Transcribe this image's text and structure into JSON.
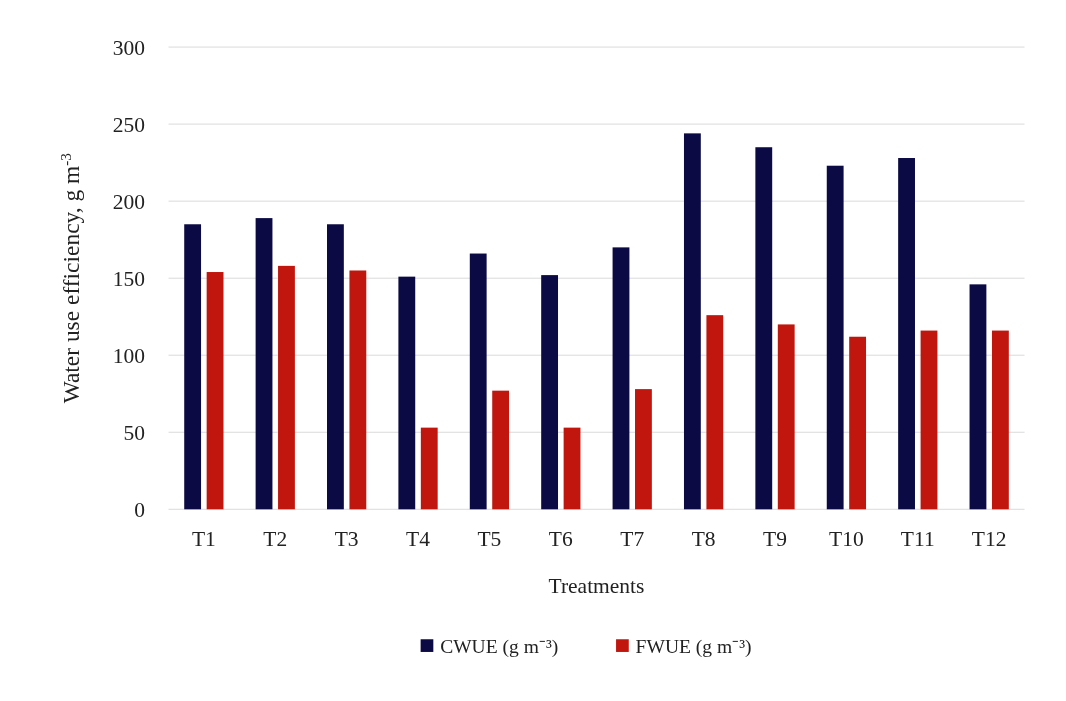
{
  "chart_data": {
    "type": "bar",
    "xlabel": "Treatments",
    "ylabel": "Water use efficiency, g m$^{-3}$",
    "categories": [
      "T1",
      "T2",
      "T3",
      "T4",
      "T5",
      "T6",
      "T7",
      "T8",
      "T9",
      "T10",
      "T11",
      "T12"
    ],
    "series": [
      {
        "name": "CWUE (g m⁻³)",
        "color": "#0b0a45",
        "values": [
          185,
          189,
          185,
          151,
          166,
          152,
          170,
          244,
          235,
          223,
          228,
          146
        ]
      },
      {
        "name": "FWUE (g m⁻³)",
        "color": "#c0160e",
        "values": [
          154,
          158,
          155,
          53,
          77,
          53,
          78,
          126,
          120,
          112,
          116,
          116
        ]
      }
    ],
    "ylim": [
      0,
      300
    ],
    "yticks": [
      0,
      50,
      100,
      150,
      200,
      250,
      300
    ],
    "grid": "y",
    "legend": "bottom"
  }
}
